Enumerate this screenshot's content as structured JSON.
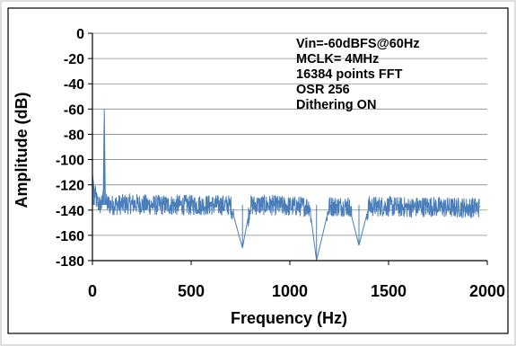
{
  "chart_data": {
    "type": "line",
    "title": "",
    "xlabel": "Frequency (Hz)",
    "ylabel": "Amplitude (dB)",
    "xlim": [
      0,
      2000
    ],
    "ylim": [
      -180,
      0
    ],
    "x_ticks": [
      "0",
      "500",
      "1000",
      "1500",
      "2000"
    ],
    "y_ticks": [
      "0",
      "-20",
      "-40",
      "-60",
      "-80",
      "-100",
      "-120",
      "-140",
      "-160",
      "-180"
    ],
    "grid": "horizontal",
    "legend": "none",
    "series_color": "#4a7ebb",
    "annotations": [
      "Vin=-60dBFS@60Hz",
      "MCLK= 4MHz",
      "16384 points FFT",
      "OSR 256",
      "Dithering ON"
    ],
    "series": [
      {
        "x": [
          0,
          5,
          10,
          20,
          30,
          40,
          50,
          55,
          60,
          65,
          70,
          100,
          200,
          300,
          400,
          500,
          600,
          700,
          760,
          800,
          900,
          1000,
          1100,
          1135,
          1200,
          1300,
          1350,
          1400,
          1500,
          1600,
          1700,
          1800,
          1900,
          1960
        ],
        "y": [
          -112,
          -118,
          -125,
          -132,
          -135,
          -136,
          -135,
          -128,
          -60,
          -128,
          -135,
          -136,
          -135,
          -136,
          -136,
          -136,
          -136,
          -136,
          -170,
          -136,
          -136,
          -137,
          -137,
          -180,
          -137,
          -137,
          -168,
          -137,
          -137,
          -138,
          -137,
          -138,
          -138,
          -138
        ]
      }
    ]
  }
}
